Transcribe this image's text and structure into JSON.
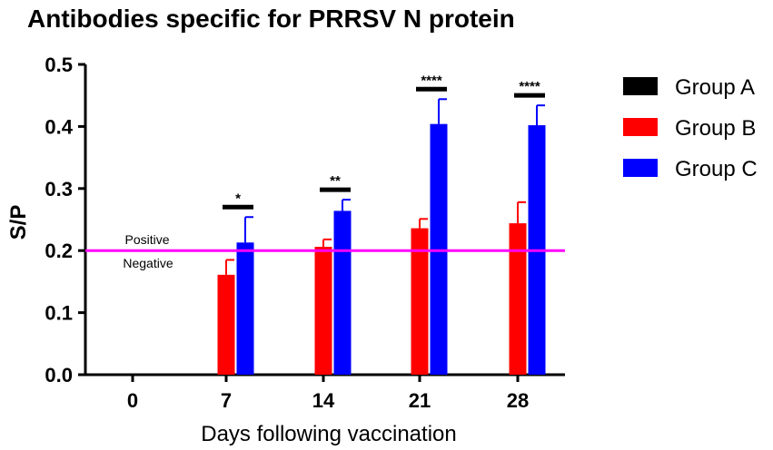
{
  "chart_data": {
    "type": "bar",
    "title": "Antibodies specific for PRRSV N protein",
    "xlabel": "Days following vaccination",
    "ylabel": "S/P",
    "categories": [
      "0",
      "7",
      "14",
      "21",
      "28"
    ],
    "ylim": [
      0,
      0.5
    ],
    "yticks": [
      "0.0",
      "0.1",
      "0.2",
      "0.3",
      "0.4",
      "0.5"
    ],
    "series": [
      {
        "name": "Group A",
        "color": "#000000",
        "values": [
          0,
          0,
          0,
          0,
          0
        ],
        "errors": [
          0,
          0,
          0,
          0,
          0
        ]
      },
      {
        "name": "Group B",
        "color": "#ff0000",
        "values": [
          0,
          0.161,
          0.206,
          0.236,
          0.244
        ],
        "errors": [
          0,
          0.024,
          0.012,
          0.015,
          0.034
        ]
      },
      {
        "name": "Group C",
        "color": "#0000ff",
        "values": [
          0,
          0.213,
          0.264,
          0.404,
          0.402
        ],
        "errors": [
          0,
          0.041,
          0.018,
          0.04,
          0.032
        ]
      }
    ],
    "reference_line": {
      "value": 0.2,
      "color": "#ff00ff",
      "label_above": "Positive",
      "label_below": "Negative"
    },
    "significance": [
      "",
      "*",
      "**",
      "****",
      "****"
    ],
    "grid": false,
    "legend": {
      "position": "right"
    }
  }
}
